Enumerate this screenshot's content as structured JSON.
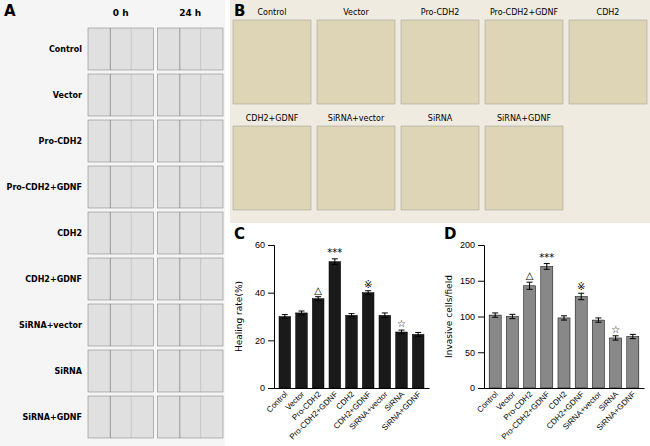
{
  "chart_data": [
    {
      "type": "image_grid",
      "title": "A",
      "annotations": [
        "0 h",
        "24 h"
      ],
      "categories": [
        "Control",
        "Vector",
        "Pro-CDH2",
        "Pro-CDH2+GDNF",
        "CDH2",
        "CDH2+GDNF",
        "SiRNA+vector",
        "SiRNA",
        "SiRNA+GDNF"
      ]
    },
    {
      "type": "image_strip",
      "title": "B",
      "categories": [
        "Control",
        "Vector",
        "Pro-CDH2",
        "Pro-CDH2+GDNF",
        "CDH2",
        "CDH2+GDNF",
        "SiRNA+vector",
        "SiRNA",
        "SiRNA+GDNF"
      ]
    },
    {
      "type": "bar",
      "title": "C",
      "ylabel": "Healing rate(%)",
      "categories": [
        "Control",
        "Vector",
        "Pro-CDH2",
        "Pro-CDH2+GDNF",
        "CDH2",
        "CDH2+GDNF",
        "SiRNA+vector",
        "SiRNA",
        "SiRNA+GDNF"
      ],
      "values": [
        30.0,
        31.5,
        37.5,
        53.0,
        30.5,
        40.0,
        30.5,
        23.5,
        22.5
      ],
      "errors": [
        0.8,
        0.8,
        0.8,
        1.2,
        0.7,
        0.8,
        1.0,
        0.8,
        0.8
      ],
      "color": "#1a1a1a",
      "ylim": [
        0,
        60
      ],
      "yticks": [
        0,
        20,
        40,
        60
      ],
      "annotations": [
        {
          "index": 2,
          "text": "△"
        },
        {
          "index": 3,
          "text": "***"
        },
        {
          "index": 5,
          "text": "※"
        },
        {
          "index": 7,
          "text": "☆"
        }
      ]
    },
    {
      "type": "bar",
      "title": "D",
      "ylabel": "Invasive cells/field",
      "categories": [
        "Control",
        "Vector",
        "Pro-CDH2",
        "Pro-CDH2+GDNF",
        "CDH2",
        "CDH2+GDNF",
        "SiRNA+vector",
        "SiRNA",
        "SiRNA+GDNF"
      ],
      "values": [
        102.0,
        100.0,
        143.0,
        170.0,
        98.0,
        128.0,
        95.0,
        70.0,
        72.0
      ],
      "errors": [
        3.0,
        3.0,
        5.0,
        4.0,
        3.0,
        4.5,
        3.0,
        3.0,
        3.0
      ],
      "color": "#888888",
      "ylim": [
        0,
        200
      ],
      "yticks": [
        0,
        50,
        100,
        150,
        200
      ],
      "annotations": [
        {
          "index": 2,
          "text": "△"
        },
        {
          "index": 3,
          "text": "***"
        },
        {
          "index": 5,
          "text": "※"
        },
        {
          "index": 7,
          "text": "☆"
        }
      ]
    }
  ]
}
